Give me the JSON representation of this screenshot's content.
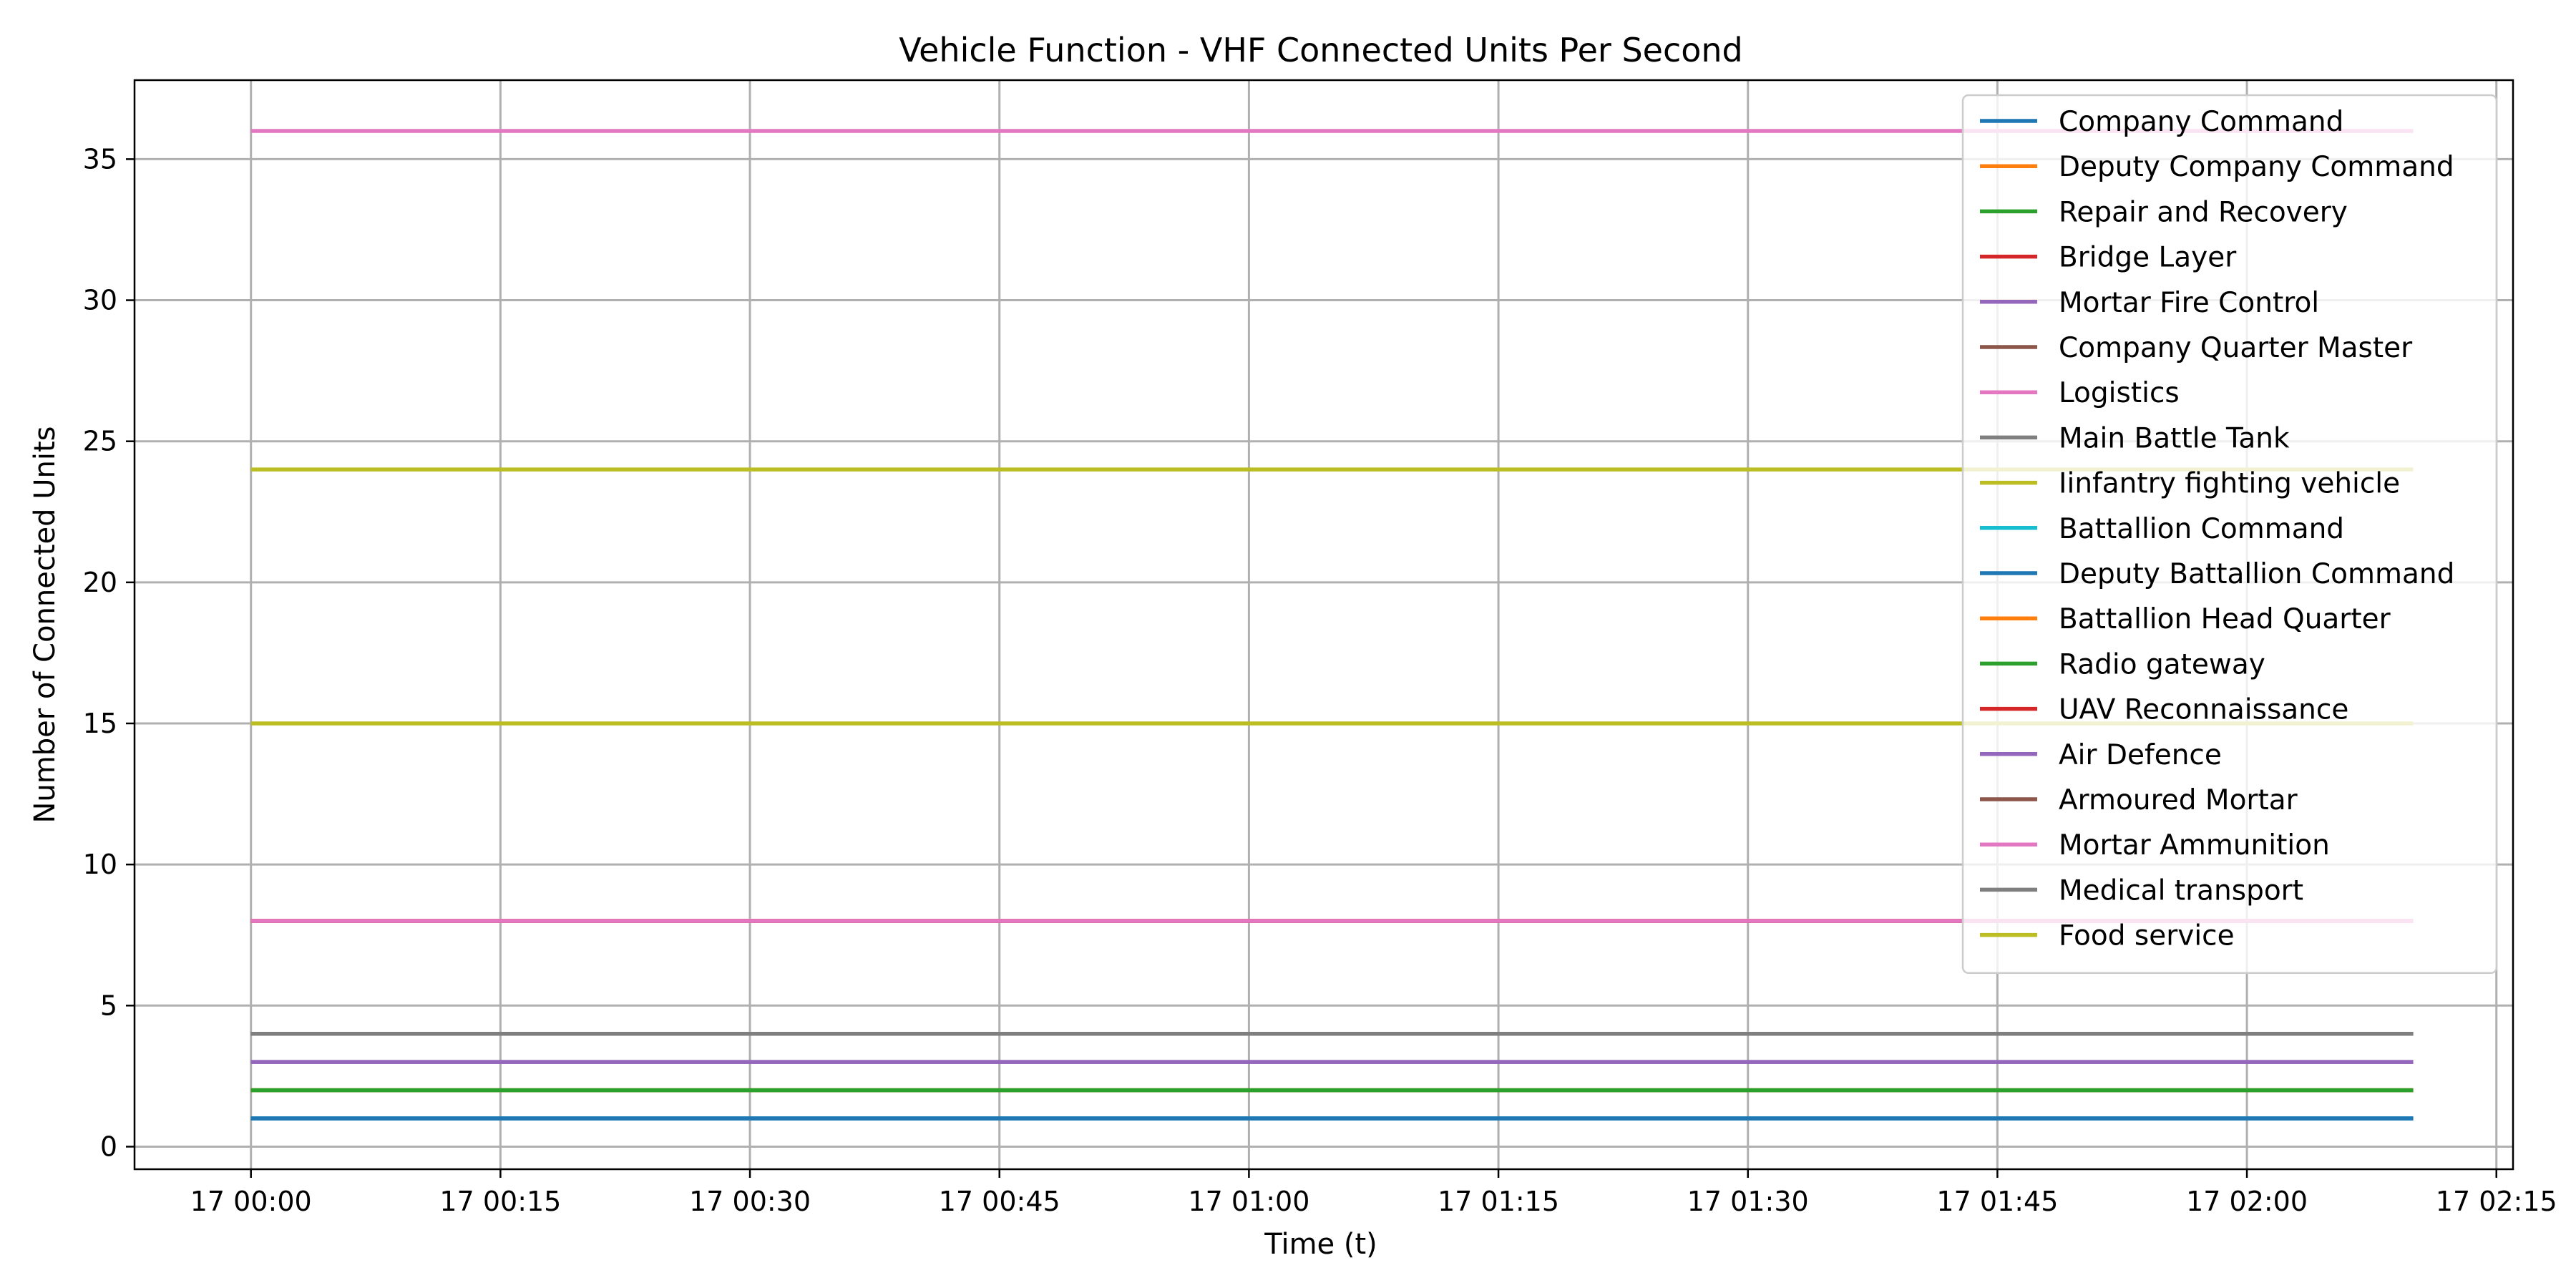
{
  "chart_data": {
    "type": "line",
    "title": "Vehicle Function - VHF Connected Units Per Second",
    "xlabel": "Time (t)",
    "ylabel": "Number of Connected Units",
    "x_range": [
      "17 00:00",
      "17 02:10"
    ],
    "xlim": [
      "16 23:53",
      "17 02:16"
    ],
    "ylim": [
      -0.8,
      37.8
    ],
    "x_ticks": [
      "17 00:00",
      "17 00:15",
      "17 00:30",
      "17 00:45",
      "17 01:00",
      "17 01:15",
      "17 01:30",
      "17 01:45",
      "17 02:00",
      "17 02:15"
    ],
    "y_ticks": [
      0,
      5,
      10,
      15,
      20,
      25,
      30,
      35
    ],
    "grid": true,
    "legend_position": "top-right",
    "series": [
      {
        "name": "Company Command",
        "value": 1,
        "color": "#1f77b4"
      },
      {
        "name": "Deputy Company Command",
        "value": 2,
        "color": "#ff7f0e"
      },
      {
        "name": "Repair and Recovery",
        "value": 2,
        "color": "#2ca02c"
      },
      {
        "name": "Bridge Layer",
        "value": 8,
        "color": "#d62728"
      },
      {
        "name": "Mortar Fire Control",
        "value": 3,
        "color": "#9467bd"
      },
      {
        "name": "Company Quarter Master",
        "value": 4,
        "color": "#8c564b"
      },
      {
        "name": "Logistics",
        "value": 36,
        "color": "#e377c2"
      },
      {
        "name": "Main Battle Tank",
        "value": 4,
        "color": "#7f7f7f"
      },
      {
        "name": "Iinfantry fighting vehicle",
        "value": 24,
        "color": "#bcbd22"
      },
      {
        "name": "Battallion Command",
        "value": 1,
        "color": "#17becf"
      },
      {
        "name": "Deputy Battallion Command",
        "value": 1,
        "color": "#1f77b4"
      },
      {
        "name": "Battallion Head Quarter",
        "value": 2,
        "color": "#ff7f0e"
      },
      {
        "name": "Radio gateway",
        "value": 2,
        "color": "#2ca02c"
      },
      {
        "name": "UAV Reconnaissance",
        "value": 8,
        "color": "#d62728"
      },
      {
        "name": "Air Defence",
        "value": 3,
        "color": "#9467bd"
      },
      {
        "name": "Armoured Mortar",
        "value": 4,
        "color": "#8c564b"
      },
      {
        "name": "Mortar Ammunition",
        "value": 8,
        "color": "#e377c2"
      },
      {
        "name": "Medical transport",
        "value": 4,
        "color": "#7f7f7f"
      },
      {
        "name": "Food service",
        "value": 15,
        "color": "#bcbd22"
      }
    ]
  }
}
